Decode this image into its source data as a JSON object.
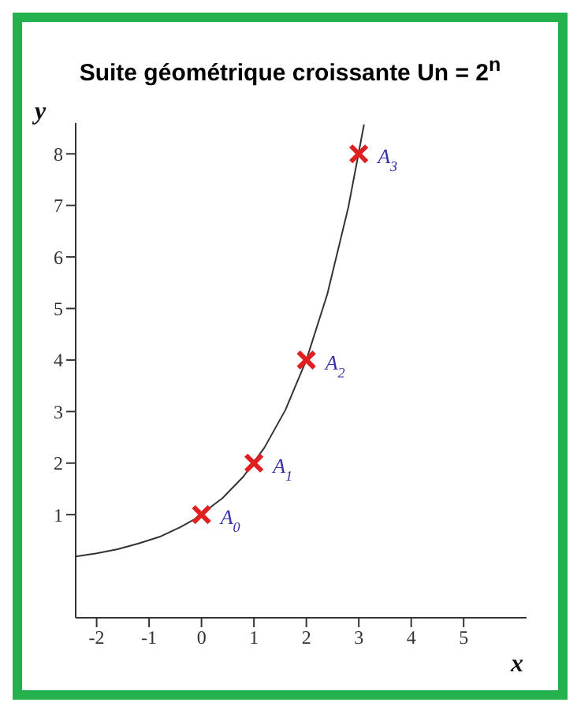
{
  "chart_data": {
    "type": "line",
    "title": "Suite géométrique croissante Un = 2$^{n}$",
    "xlabel": "x",
    "ylabel": "y",
    "xlim": [
      -2.4,
      6.2
    ],
    "xticks": [
      -2,
      -1,
      0,
      1,
      2,
      3,
      4,
      5
    ],
    "ylim": [
      -1,
      8.6
    ],
    "yticks": [
      1,
      2,
      3,
      4,
      5,
      6,
      7,
      8
    ],
    "grid": false,
    "marker": "none",
    "line_style": "solid",
    "series": [
      {
        "color": "#333333",
        "x": [
          -2.4,
          -2,
          -1.6,
          -1.2,
          -0.8,
          -0.4,
          -0.15,
          0.4,
          0.8,
          1.2,
          1.6,
          2,
          2.4,
          2.8,
          3.1
        ],
        "values": [
          0.19,
          0.25,
          0.33,
          0.44,
          0.57,
          0.76,
          0.9,
          1.32,
          1.74,
          2.3,
          3.03,
          4,
          5.28,
          6.96,
          8.57
        ]
      },
      {
        "type": "scatter",
        "marker": "cross",
        "color": "#e02020",
        "x": [
          0,
          1,
          2,
          3
        ],
        "values": [
          1,
          2,
          4,
          8
        ]
      }
    ],
    "annotations": [
      {
        "text": "A$_{0}$",
        "x": 0,
        "y": 1
      },
      {
        "text": "A$_{1}$",
        "x": 1,
        "y": 2
      },
      {
        "text": "A$_{2}$",
        "x": 2,
        "y": 4
      },
      {
        "text": "A$_{3}$",
        "x": 3,
        "y": 8
      }
    ]
  }
}
